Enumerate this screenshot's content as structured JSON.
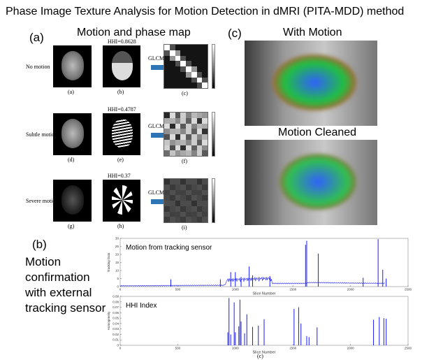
{
  "title": "Phase Image Texture Analysis for Motion Detection in dMRI (PITA-MDD) method",
  "panel_a": {
    "label": "(a)",
    "heading": "Motion and phase map",
    "glcm_label": "GLCM",
    "rows": [
      {
        "condition": "No motion",
        "hhi": "HHI=0.8628",
        "captions": [
          "(a)",
          "(b)",
          "(c)"
        ]
      },
      {
        "condition": "Subtle motion",
        "hhi": "HHI=0.4787",
        "captions": [
          "(d)",
          "(e)",
          "(f)"
        ]
      },
      {
        "condition": "Severe motion",
        "hhi": "HHI=0.37",
        "captions": [
          "(g)",
          "(h)",
          "(i)"
        ]
      }
    ]
  },
  "panel_c": {
    "label": "(c)",
    "top_heading": "With Motion",
    "bottom_heading": "Motion Cleaned"
  },
  "panel_b": {
    "label": "(b)",
    "description_lines": [
      "Motion",
      "confirmation",
      "with external",
      "tracking sensor"
    ],
    "figure_caption": "(c)"
  },
  "colors": {
    "arrow": "#2e75b6",
    "series": "#1a1aff"
  },
  "chart_data": [
    {
      "type": "line",
      "title": "Motion from tracking sensor",
      "xlabel": "Slice Number",
      "ylabel": "Tracking Data",
      "xlim": [
        0,
        2500
      ],
      "ylim": [
        0,
        30
      ],
      "xticks": [
        0,
        500,
        1000,
        1500,
        2000,
        2500
      ],
      "yticks": [
        0,
        5,
        10,
        15,
        20,
        25,
        30
      ],
      "baseline": [
        [
          0,
          0.5
        ],
        [
          900,
          0.8
        ],
        [
          930,
          2.5
        ],
        [
          1300,
          3.5
        ],
        [
          1320,
          2
        ],
        [
          1600,
          2
        ],
        [
          1640,
          2.5
        ],
        [
          2300,
          2
        ]
      ],
      "spikes": [
        [
          440,
          4.5
        ],
        [
          870,
          4.5
        ],
        [
          960,
          9
        ],
        [
          1000,
          9
        ],
        [
          1050,
          6
        ],
        [
          1120,
          12.5
        ],
        [
          1150,
          7
        ],
        [
          1300,
          6.5
        ],
        [
          1610,
          26
        ],
        [
          1620,
          28.5
        ],
        [
          1720,
          20.5
        ],
        [
          2110,
          5.5
        ],
        [
          2240,
          29.5
        ],
        [
          2280,
          10.5
        ],
        [
          2310,
          5
        ]
      ]
    },
    {
      "type": "line",
      "title": "HHI Index",
      "xlabel": "Slice Number",
      "ylabel": "Homogeneity",
      "xlim": [
        0,
        2500
      ],
      "ylim": [
        0,
        0.09
      ],
      "xticks": [
        0,
        500,
        1000,
        1500,
        2000,
        2500
      ],
      "yticks": [
        0,
        0.01,
        0.02,
        0.03,
        0.04,
        0.05,
        0.06,
        0.07,
        0.08,
        0.09
      ],
      "spikes": [
        [
          935,
          0.024
        ],
        [
          945,
          0.087
        ],
        [
          960,
          0.02
        ],
        [
          990,
          0.079
        ],
        [
          1000,
          0.024
        ],
        [
          1030,
          0.035
        ],
        [
          1040,
          0.084
        ],
        [
          1050,
          0.044
        ],
        [
          1080,
          0.022
        ],
        [
          1100,
          0.057
        ],
        [
          1150,
          0.034
        ],
        [
          1200,
          0.036
        ],
        [
          1250,
          0.048
        ],
        [
          1510,
          0.067
        ],
        [
          1550,
          0.07
        ],
        [
          1570,
          0.04
        ],
        [
          1620,
          0.017
        ],
        [
          1640,
          0.015
        ],
        [
          1710,
          0.033
        ],
        [
          2200,
          0.047
        ],
        [
          2250,
          0.052
        ],
        [
          2290,
          0.05
        ],
        [
          2310,
          0.049
        ]
      ]
    }
  ]
}
